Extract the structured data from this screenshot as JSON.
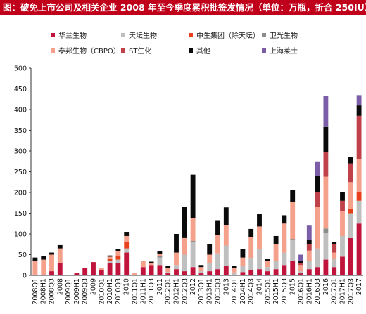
{
  "title": "图：破免上市公司及相关企业 2008 年至今季度累积批签发情况（单位：万瓶，折合 250IU）",
  "chart_data": {
    "type": "bar",
    "stacked": true,
    "title": "图：破免上市公司及相关企业 2008 年至今季度累积批签发情况（单位：万瓶，折合 250IU）",
    "xlabel": "",
    "ylabel": "",
    "ylim": [
      0,
      500
    ],
    "yticks": [
      0,
      50,
      100,
      150,
      200,
      250,
      300,
      350,
      400,
      450,
      500
    ],
    "grid": false,
    "legend_position": "top",
    "categories": [
      "2008Q1",
      "2008H1",
      "2008Q3",
      "2008",
      "2009Q1",
      "2009H1",
      "2009Q3",
      "2009",
      "2010Q1",
      "2010H1",
      "2010Q3",
      "2010",
      "2011Q1",
      "2011H1",
      "2011Q3",
      "2011",
      "2012Q1",
      "2012H1",
      "2012Q3",
      "2012",
      "2013Q1",
      "2013H1",
      "2013Q3",
      "2013",
      "2014Q1",
      "2014H1",
      "2014Q3",
      "2014",
      "2015Q1",
      "2015H1",
      "2015Q3",
      "2015",
      "2016Q1",
      "2016H1",
      "2016Q3",
      "2016",
      "2017Q1",
      "2017H1",
      "2017Q3",
      "2017"
    ],
    "series": [
      {
        "name": "华兰生物",
        "color": "#c0143c",
        "values": [
          0,
          0,
          10,
          30,
          0,
          5,
          18,
          32,
          12,
          30,
          30,
          55,
          0,
          20,
          25,
          25,
          5,
          15,
          10,
          20,
          5,
          10,
          15,
          22,
          2,
          8,
          12,
          15,
          10,
          15,
          25,
          35,
          5,
          15,
          20,
          38,
          20,
          45,
          90,
          125
        ]
      },
      {
        "name": "天坛生物",
        "color": "#bfbfbf",
        "values": [
          0,
          0,
          0,
          0,
          0,
          0,
          0,
          0,
          0,
          5,
          8,
          10,
          0,
          0,
          0,
          18,
          3,
          10,
          40,
          60,
          5,
          20,
          38,
          50,
          5,
          15,
          30,
          48,
          10,
          20,
          30,
          50,
          5,
          20,
          45,
          65,
          20,
          50,
          60,
          55
        ]
      },
      {
        "name": "中生集团（除天坛）",
        "color": "#e8401c",
        "values": [
          0,
          0,
          0,
          0,
          0,
          0,
          0,
          0,
          0,
          5,
          10,
          15,
          0,
          0,
          0,
          0,
          0,
          0,
          0,
          0,
          0,
          0,
          0,
          0,
          0,
          0,
          0,
          0,
          0,
          0,
          0,
          0,
          0,
          0,
          0,
          0,
          0,
          0,
          10,
          20
        ]
      },
      {
        "name": "卫光生物",
        "color": "#8c8c8c",
        "values": [
          0,
          0,
          0,
          0,
          0,
          0,
          0,
          0,
          0,
          0,
          0,
          0,
          0,
          0,
          0,
          3,
          0,
          0,
          0,
          3,
          0,
          0,
          0,
          0,
          0,
          0,
          0,
          0,
          0,
          0,
          0,
          3,
          0,
          0,
          0,
          10,
          0,
          0,
          0,
          0
        ]
      },
      {
        "name": "泰邦生物（CBPO）",
        "color": "#f5a08a",
        "values": [
          35,
          38,
          40,
          35,
          0,
          0,
          0,
          0,
          5,
          5,
          10,
          15,
          5,
          15,
          5,
          5,
          10,
          30,
          40,
          55,
          10,
          20,
          45,
          50,
          10,
          20,
          50,
          55,
          15,
          40,
          70,
          90,
          15,
          25,
          100,
          125,
          15,
          60,
          65,
          80
        ]
      },
      {
        "name": "ST生化",
        "color": "#c1414b",
        "values": [
          0,
          0,
          0,
          0,
          0,
          0,
          0,
          0,
          0,
          0,
          0,
          0,
          0,
          0,
          0,
          0,
          0,
          0,
          0,
          0,
          0,
          0,
          0,
          0,
          0,
          0,
          0,
          0,
          0,
          0,
          0,
          0,
          5,
          15,
          35,
          60,
          20,
          25,
          45,
          105
        ]
      },
      {
        "name": "其他",
        "color": "#0a0a0a",
        "values": [
          8,
          8,
          5,
          8,
          0,
          0,
          0,
          0,
          0,
          3,
          5,
          10,
          0,
          0,
          3,
          8,
          5,
          45,
          75,
          105,
          5,
          25,
          35,
          42,
          5,
          20,
          20,
          30,
          5,
          20,
          20,
          28,
          5,
          10,
          40,
          60,
          5,
          20,
          15,
          25
        ]
      },
      {
        "name": "上海莱士",
        "color": "#7b5ea7",
        "values": [
          0,
          0,
          0,
          0,
          0,
          0,
          0,
          0,
          0,
          0,
          0,
          0,
          0,
          0,
          0,
          0,
          0,
          0,
          0,
          0,
          0,
          0,
          0,
          0,
          0,
          0,
          0,
          0,
          0,
          0,
          0,
          0,
          15,
          35,
          35,
          75,
          0,
          0,
          0,
          25
        ]
      }
    ]
  }
}
